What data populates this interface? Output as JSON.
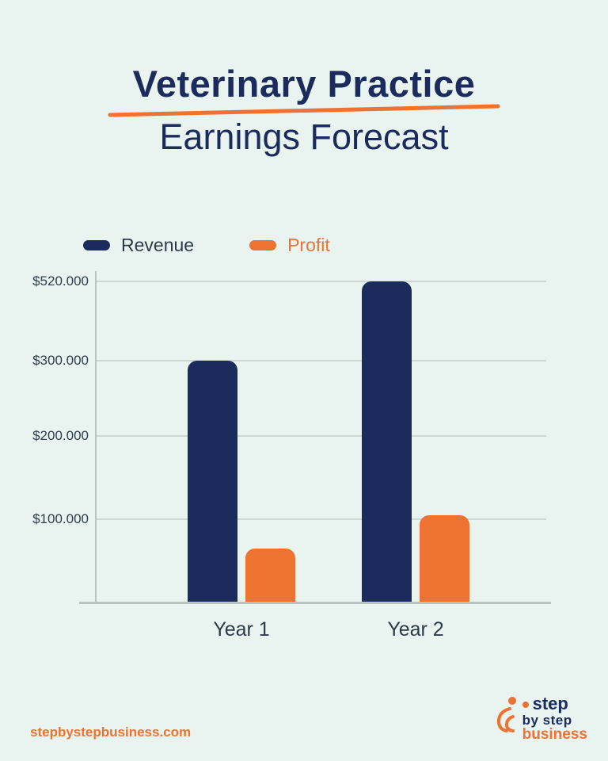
{
  "page": {
    "background": "#e9f3ef"
  },
  "title": {
    "line1": "Veterinary Practice",
    "line2": "Earnings Forecast",
    "underline_color": "#ee7231",
    "text_color": "#1a2b5c"
  },
  "legend": [
    {
      "label": "Revenue",
      "color": "#1a2b5c",
      "label_color": "#2c3a4a"
    },
    {
      "label": "Profit",
      "color": "#ee7231",
      "label_color": "#ee7231"
    }
  ],
  "chart_data": {
    "type": "bar",
    "categories": [
      "Year 1",
      "Year 2"
    ],
    "series": [
      {
        "name": "Revenue",
        "color": "#1a2b5c",
        "values": [
          300000,
          520000
        ]
      },
      {
        "name": "Profit",
        "color": "#ee7231",
        "values": [
          65000,
          105000
        ]
      }
    ],
    "y_ticks": [
      {
        "label": "$520.000",
        "value": 520000
      },
      {
        "label": "$300.000",
        "value": 300000
      },
      {
        "label": "$200.000",
        "value": 200000
      },
      {
        "label": "$100.000",
        "value": 100000
      }
    ],
    "title": "Veterinary Practice Earnings Forecast",
    "xlabel": "",
    "ylabel": "",
    "ylim": [
      0,
      560000
    ],
    "grid": true,
    "legend_position": "top-left"
  },
  "footer": {
    "website": "stepbystepbusiness.com",
    "logo": {
      "line1": "step",
      "line2": "by step",
      "line3": "business"
    }
  }
}
